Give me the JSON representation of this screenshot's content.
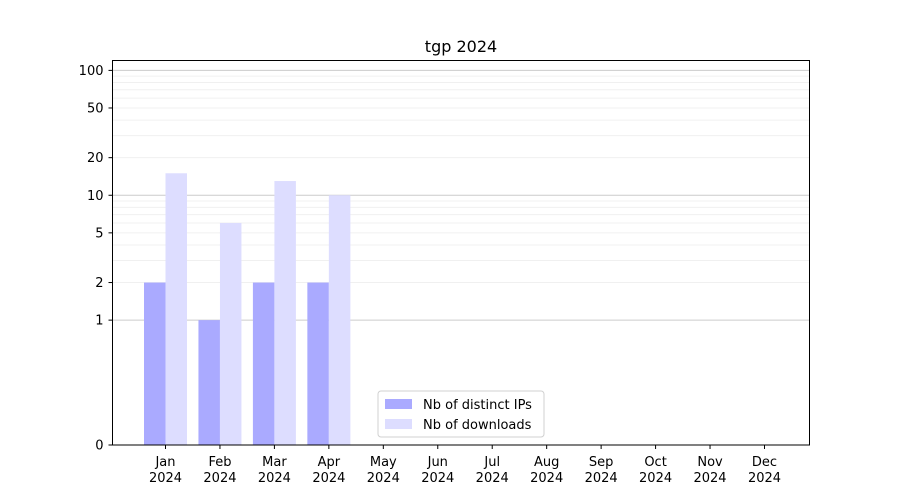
{
  "chart_data": {
    "type": "bar",
    "title": "tgp 2024",
    "xlabel": "",
    "ylabel": "",
    "y_scale": "symlog",
    "ylim": [
      0,
      120
    ],
    "yticks": [
      0,
      1,
      2,
      5,
      10,
      20,
      50,
      100
    ],
    "grid": true,
    "legend_position": "lower-center",
    "categories": [
      "Jan\n2024",
      "Feb\n2024",
      "Mar\n2024",
      "Apr\n2024",
      "May\n2024",
      "Jun\n2024",
      "Jul\n2024",
      "Aug\n2024",
      "Sep\n2024",
      "Oct\n2024",
      "Nov\n2024",
      "Dec\n2024"
    ],
    "series": [
      {
        "name": "Nb of distinct IPs",
        "color": "#aaaaff",
        "values": [
          2,
          1,
          2,
          2,
          0,
          0,
          0,
          0,
          0,
          0,
          0,
          0
        ]
      },
      {
        "name": "Nb of downloads",
        "color": "#ddddff",
        "values": [
          15,
          6,
          13,
          10,
          0,
          0,
          0,
          0,
          0,
          0,
          0,
          0
        ]
      }
    ]
  }
}
